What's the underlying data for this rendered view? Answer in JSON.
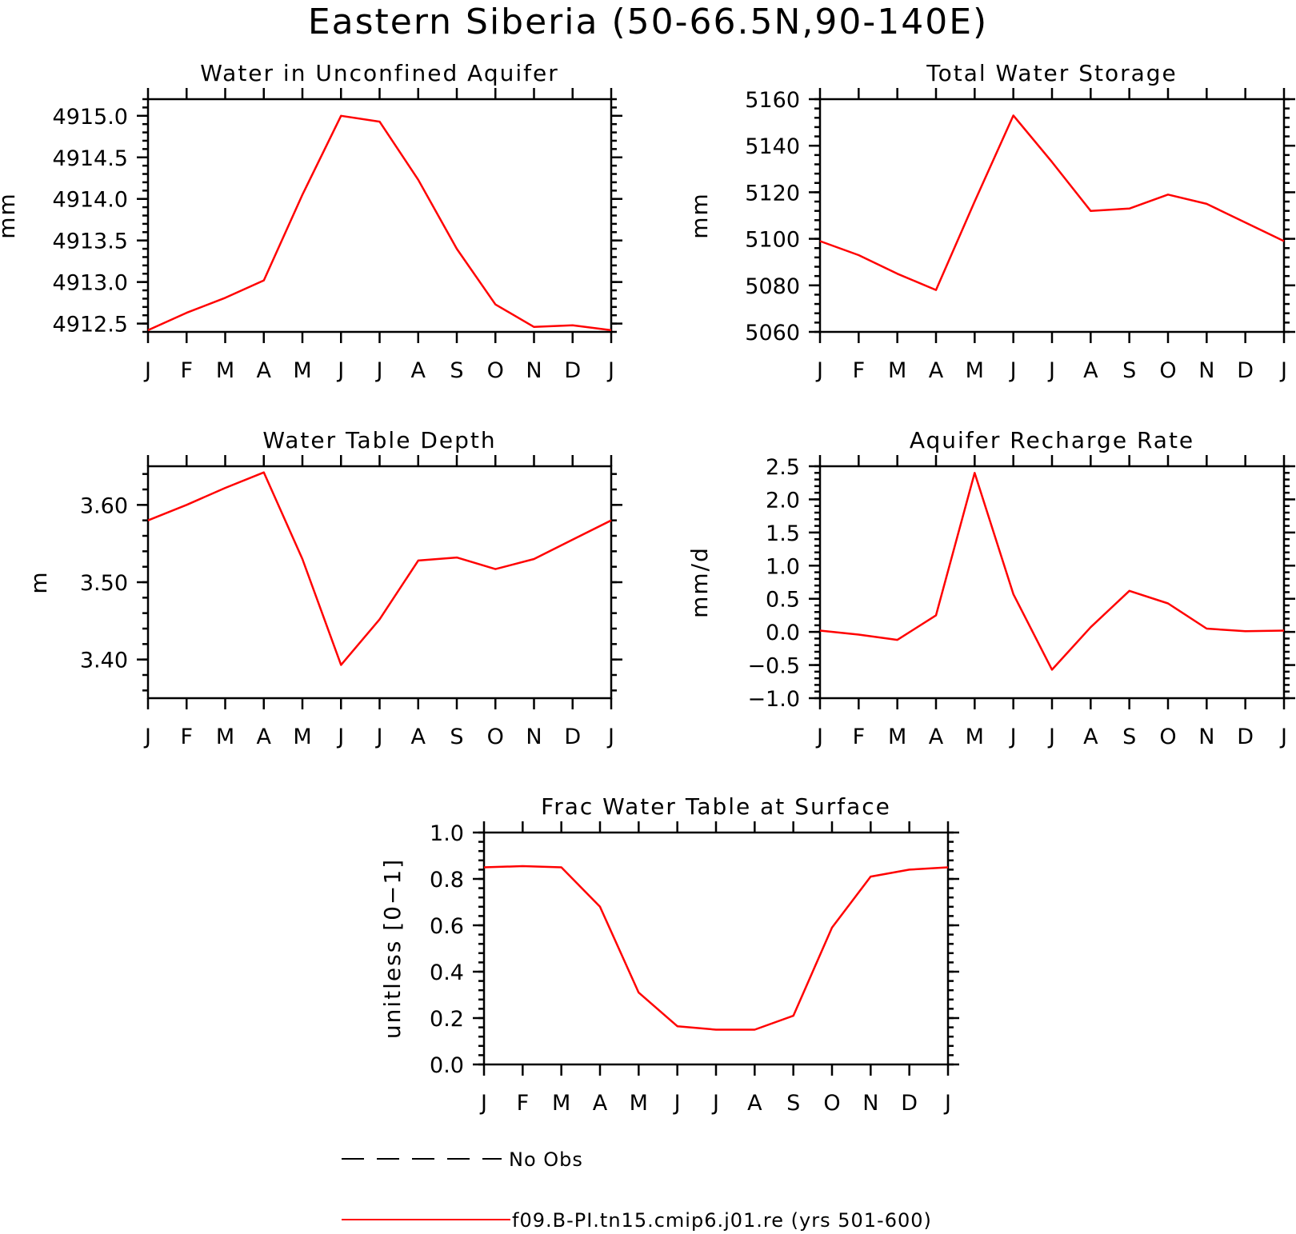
{
  "title": "Eastern Siberia (50-66.5N,90-140E)",
  "months": [
    "J",
    "F",
    "M",
    "A",
    "M",
    "J",
    "J",
    "A",
    "S",
    "O",
    "N",
    "D",
    "J"
  ],
  "legend": [
    {
      "label": "No Obs",
      "style": "dashed",
      "color": "#000000"
    },
    {
      "label": "f09.B-PI.tn15.cmip6.j01.re (yrs 501-600)",
      "style": "solid",
      "color": "#ff0000"
    }
  ],
  "chart_data": [
    {
      "type": "line",
      "title": "Water in Unconfined Aquifer",
      "ylabel": "mm",
      "ylim": [
        4912.4,
        4915.2
      ],
      "yticks": [
        4912.5,
        4913.0,
        4913.5,
        4914.0,
        4914.5,
        4915.0
      ],
      "ytick_labels": [
        "4912.5",
        "4913.0",
        "4913.5",
        "4914.0",
        "4914.5",
        "4915.0"
      ],
      "yminor_step": 0.1,
      "series": [
        {
          "color": "#ff0000",
          "values": [
            4912.42,
            4912.63,
            4912.81,
            4913.02,
            4914.05,
            4915.0,
            4914.93,
            4914.23,
            4913.4,
            4912.73,
            4912.46,
            4912.48,
            4912.42
          ]
        }
      ]
    },
    {
      "type": "line",
      "title": "Total Water Storage",
      "ylabel": "mm",
      "ylim": [
        5060,
        5160
      ],
      "yticks": [
        5060,
        5080,
        5100,
        5120,
        5140,
        5160
      ],
      "ytick_labels": [
        "5060",
        "5080",
        "5100",
        "5120",
        "5140",
        "5160"
      ],
      "yminor_step": 4,
      "series": [
        {
          "color": "#ff0000",
          "values": [
            5099,
            5093,
            5085,
            5078,
            5116,
            5153,
            5133,
            5112,
            5113,
            5119,
            5115,
            5107,
            5099
          ]
        }
      ]
    },
    {
      "type": "line",
      "title": "Water Table Depth",
      "ylabel": "m",
      "ylim": [
        3.35,
        3.65
      ],
      "yticks": [
        3.4,
        3.5,
        3.6
      ],
      "ytick_labels": [
        "3.40",
        "3.50",
        "3.60"
      ],
      "yminor_step": 0.02,
      "series": [
        {
          "color": "#ff0000",
          "values": [
            3.58,
            3.6,
            3.622,
            3.642,
            3.53,
            3.393,
            3.452,
            3.528,
            3.532,
            3.517,
            3.53,
            3.555,
            3.58
          ]
        }
      ]
    },
    {
      "type": "line",
      "title": "Aquifer Recharge Rate",
      "ylabel": "mm/d",
      "ylim": [
        -1.0,
        2.5
      ],
      "yticks": [
        -1.0,
        -0.5,
        0.0,
        0.5,
        1.0,
        1.5,
        2.0,
        2.5
      ],
      "ytick_labels": [
        "−1.0",
        "−0.5",
        "0.0",
        "0.5",
        "1.0",
        "1.5",
        "2.0",
        "2.5"
      ],
      "yminor_step": 0.1,
      "series": [
        {
          "color": "#ff0000",
          "values": [
            0.02,
            -0.04,
            -0.12,
            0.25,
            2.4,
            0.57,
            -0.57,
            0.07,
            0.62,
            0.43,
            0.05,
            0.01,
            0.02
          ]
        }
      ]
    },
    {
      "type": "line",
      "title": "Frac Water Table at Surface",
      "ylabel": "unitless [0−1]",
      "ylim": [
        0.0,
        1.0
      ],
      "yticks": [
        0.0,
        0.2,
        0.4,
        0.6,
        0.8,
        1.0
      ],
      "ytick_labels": [
        "0.0",
        "0.2",
        "0.4",
        "0.6",
        "0.8",
        "1.0"
      ],
      "yminor_step": 0.04,
      "series": [
        {
          "color": "#ff0000",
          "values": [
            0.85,
            0.855,
            0.85,
            0.68,
            0.31,
            0.165,
            0.15,
            0.15,
            0.21,
            0.59,
            0.81,
            0.84,
            0.85
          ]
        }
      ]
    }
  ]
}
